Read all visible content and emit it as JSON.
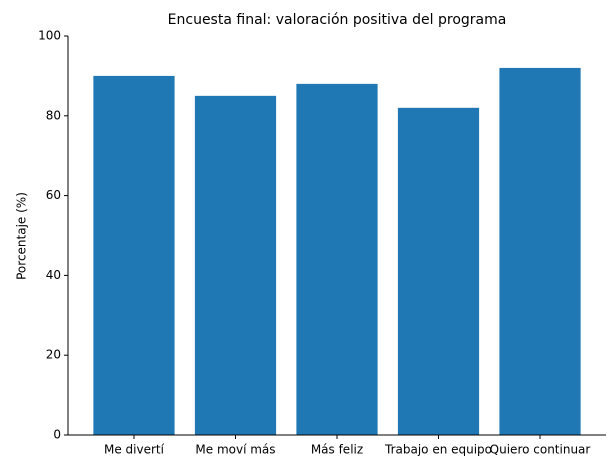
{
  "chart_data": {
    "type": "bar",
    "title": "Encuesta final: valoración positiva del programa",
    "ylabel": "Porcentaje (%)",
    "categories": [
      "Me divertí",
      "Me moví más",
      "Más feliz",
      "Trabajo en equipo",
      "Quiero continuar"
    ],
    "values": [
      90,
      85,
      88,
      82,
      92
    ],
    "color": "#1f77b4",
    "ylim": [
      0,
      100
    ],
    "yticks": [
      0,
      20,
      40,
      60,
      80,
      100
    ],
    "grid": false
  }
}
